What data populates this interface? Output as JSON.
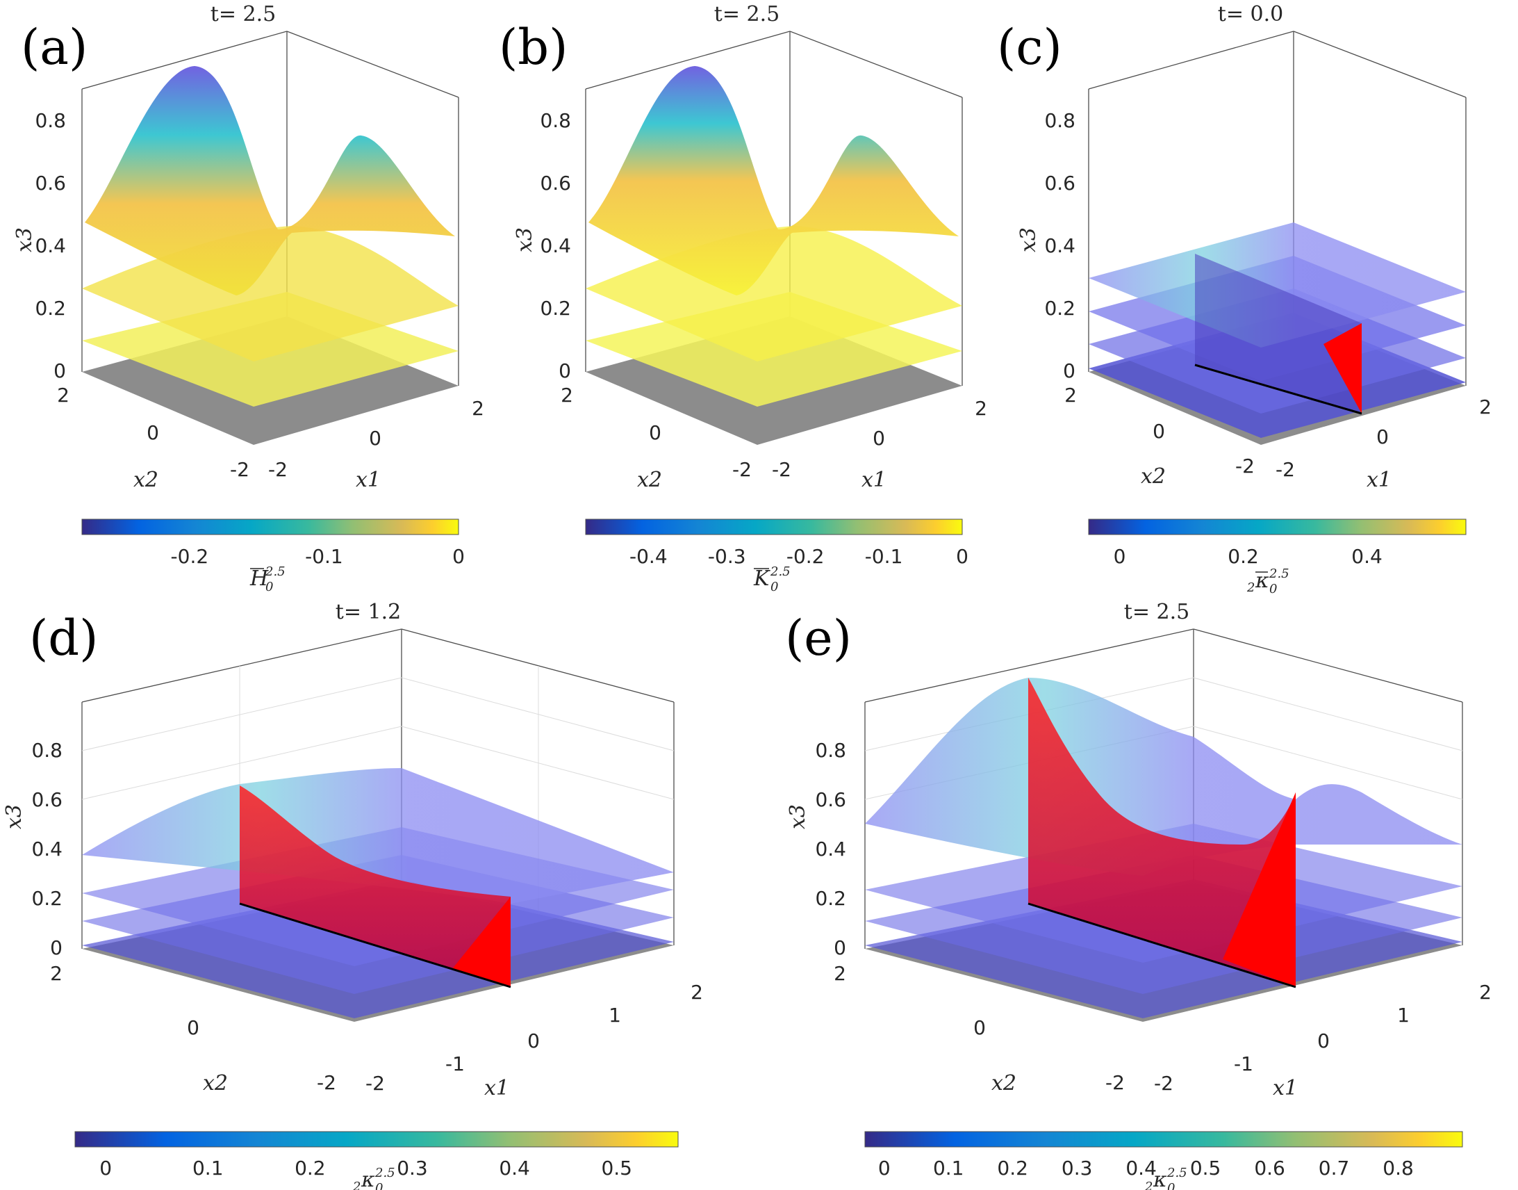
{
  "chart_data": [
    {
      "panel": "(a)",
      "type": "surface3d",
      "title": "t= 2.5",
      "xlabel": "x1",
      "ylabel": "x2",
      "zlabel": "x3",
      "x_ticks": [
        "-2",
        "0",
        "2"
      ],
      "y_ticks": [
        "-2",
        "0",
        "2"
      ],
      "z_ticks": [
        "0",
        "0.2",
        "0.4",
        "0.6",
        "0.8"
      ],
      "surfaces": [
        "x3 = 0.1 level",
        "x3 = 0.2 level",
        "x3 = 0.4 level (two peaks)"
      ],
      "colorbar": {
        "label": "H̄0^2.5",
        "range": [
          -0.28,
          0
        ],
        "ticks": [
          "-0.2",
          "-0.1",
          "0"
        ]
      }
    },
    {
      "panel": "(b)",
      "type": "surface3d",
      "title": "t= 2.5",
      "xlabel": "x1",
      "ylabel": "x2",
      "zlabel": "x3",
      "x_ticks": [
        "-2",
        "0",
        "2"
      ],
      "y_ticks": [
        "-2",
        "0",
        "2"
      ],
      "z_ticks": [
        "0",
        "0.2",
        "0.4",
        "0.6",
        "0.8"
      ],
      "colorbar": {
        "label": "K̄0^2.5",
        "range": [
          -0.48,
          0
        ],
        "ticks": [
          "-0.4",
          "-0.3",
          "-0.2",
          "-0.1",
          "0"
        ]
      }
    },
    {
      "panel": "(c)",
      "type": "surface3d",
      "title": "t= 0.0",
      "xlabel": "x1",
      "ylabel": "x2",
      "zlabel": "x3",
      "x_ticks": [
        "-2",
        "0",
        "2"
      ],
      "y_ticks": [
        "-2",
        "0",
        "2"
      ],
      "z_ticks": [
        "0",
        "0.2",
        "0.4",
        "0.6",
        "0.8"
      ],
      "colorbar": {
        "label": "2κ̄0^2.5",
        "range": [
          -0.05,
          0.56
        ],
        "ticks": [
          "0",
          "0.2",
          "0.4"
        ]
      }
    },
    {
      "panel": "(d)",
      "type": "surface3d",
      "title": "t= 1.2",
      "xlabel": "x1",
      "ylabel": "x2",
      "zlabel": "x3",
      "x_ticks": [
        "-2",
        "-1",
        "0",
        "1",
        "2"
      ],
      "y_ticks": [
        "-2",
        "0",
        "2"
      ],
      "z_ticks": [
        "0",
        "0.2",
        "0.4",
        "0.6",
        "0.8"
      ],
      "colorbar": {
        "label": "2κ̄0^2.5",
        "range": [
          -0.03,
          0.56
        ],
        "ticks": [
          "0",
          "0.1",
          "0.2",
          "0.3",
          "0.4",
          "0.5"
        ]
      }
    },
    {
      "panel": "(e)",
      "type": "surface3d",
      "title": "t= 2.5",
      "xlabel": "x1",
      "ylabel": "x2",
      "zlabel": "x3",
      "x_ticks": [
        "-2",
        "-1",
        "0",
        "1",
        "2"
      ],
      "y_ticks": [
        "-2",
        "0",
        "2"
      ],
      "z_ticks": [
        "0",
        "0.2",
        "0.4",
        "0.6",
        "0.8"
      ],
      "colorbar": {
        "label": "2κ̄0^2.5",
        "range": [
          -0.03,
          0.9
        ],
        "ticks": [
          "0",
          "0.1",
          "0.2",
          "0.3",
          "0.4",
          "0.5",
          "0.6",
          "0.7",
          "0.8"
        ]
      }
    }
  ],
  "colors": {
    "floor": "#8c8c8c",
    "red_surface": "#ff0000",
    "box": "#4d4d4d"
  }
}
